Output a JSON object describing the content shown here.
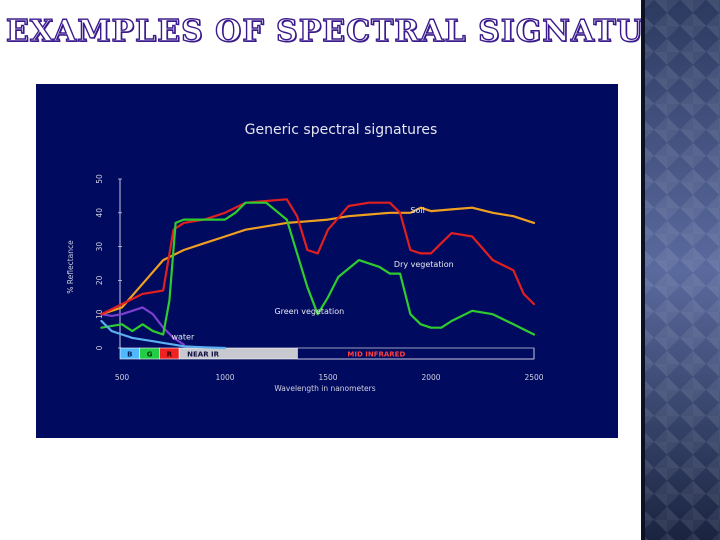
{
  "slide": {
    "title": "EXAMPLES OF SPECTRAL SIGNATURE"
  },
  "chart_data": {
    "type": "line",
    "title": "Generic spectral signatures",
    "xlabel": "Wavelength in nanometers",
    "ylabel": "% Reflectance",
    "xlim": [
      500,
      2500
    ],
    "ylim": [
      0,
      50
    ],
    "x_ticks": [
      "500",
      "1000",
      "1500",
      "2000",
      "2500"
    ],
    "y_ticks": [
      "0",
      "10",
      "20",
      "30",
      "40",
      "50"
    ],
    "bands": [
      {
        "label": "B",
        "from": 400,
        "to": 500,
        "color": "#4fb8ff",
        "text_color": "#00205a"
      },
      {
        "label": "G",
        "from": 500,
        "to": 600,
        "color": "#22cc44",
        "text_color": "#003300"
      },
      {
        "label": "R",
        "from": 600,
        "to": 700,
        "color": "#ee2222",
        "text_color": "#330000"
      },
      {
        "label": "NEAR IR",
        "from": 700,
        "to": 1300,
        "color": "#c8c8d0",
        "text_color": "#101040"
      },
      {
        "label": "MID INFRARED",
        "from": 1300,
        "to": 2500,
        "color": "#000a5e",
        "text_color": "#ff4040"
      }
    ],
    "series": [
      {
        "name": "Soil",
        "color": "#f0a020",
        "x": [
          400,
          500,
          600,
          700,
          800,
          900,
          1000,
          1100,
          1200,
          1300,
          1400,
          1500,
          1600,
          1700,
          1800,
          1900,
          1950,
          2000,
          2100,
          2200,
          2300,
          2400,
          2500
        ],
        "y": [
          10,
          12,
          19,
          26,
          29,
          31,
          33,
          35,
          36,
          37,
          37.5,
          38,
          39,
          39.5,
          40,
          40,
          41.5,
          40.5,
          41,
          41.5,
          40,
          39,
          37
        ]
      },
      {
        "name": "Dry vegetation",
        "color": "#e02020",
        "x": [
          400,
          500,
          600,
          700,
          750,
          800,
          900,
          1000,
          1100,
          1200,
          1300,
          1350,
          1400,
          1450,
          1500,
          1600,
          1700,
          1800,
          1850,
          1900,
          1950,
          2000,
          2050,
          2100,
          2200,
          2300,
          2400,
          2450,
          2500
        ],
        "y": [
          10,
          13,
          16,
          17,
          35,
          37,
          38,
          40,
          43,
          43.5,
          44,
          39,
          29,
          28,
          35,
          42,
          43,
          43,
          40,
          29,
          28,
          28,
          31,
          34,
          33,
          26,
          23,
          16,
          13
        ]
      },
      {
        "name": "Green vegetation",
        "color": "#2ecc2e",
        "x": [
          400,
          500,
          550,
          600,
          650,
          700,
          730,
          760,
          800,
          900,
          1000,
          1050,
          1100,
          1200,
          1300,
          1400,
          1450,
          1500,
          1550,
          1650,
          1750,
          1800,
          1850,
          1900,
          1950,
          2000,
          2050,
          2100,
          2200,
          2300,
          2400,
          2500
        ],
        "y": [
          6,
          7,
          5,
          7,
          5,
          4,
          14,
          37,
          38,
          38,
          38,
          40,
          43,
          43,
          38,
          18,
          10,
          15,
          21,
          26,
          24,
          22,
          22,
          10,
          7,
          6,
          6,
          8,
          11,
          10,
          7,
          4
        ]
      },
      {
        "name": "water",
        "color": "#5ab0f0",
        "x": [
          400,
          450,
          500,
          550,
          600,
          650,
          700,
          750,
          800,
          900,
          1000
        ],
        "y": [
          8,
          5,
          4,
          3,
          2.5,
          2,
          1.5,
          1,
          0.5,
          0.2,
          0
        ]
      }
    ],
    "extra_curve": {
      "name": "",
      "color": "#7b3fcf",
      "x": [
        400,
        450,
        500,
        550,
        600,
        650,
        700,
        750,
        800
      ],
      "y": [
        10,
        9.5,
        10,
        11,
        12,
        10,
        6,
        3,
        1
      ]
    },
    "series_labels": [
      {
        "text": "Soil",
        "x": 1900,
        "y": 40
      },
      {
        "text": "Dry vegetation",
        "x": 1820,
        "y": 24
      },
      {
        "text": "Green vegetation",
        "x": 1240,
        "y": 10
      },
      {
        "text": "water",
        "x": 740,
        "y": 2.5
      }
    ],
    "legend": "inline",
    "grid": false
  }
}
